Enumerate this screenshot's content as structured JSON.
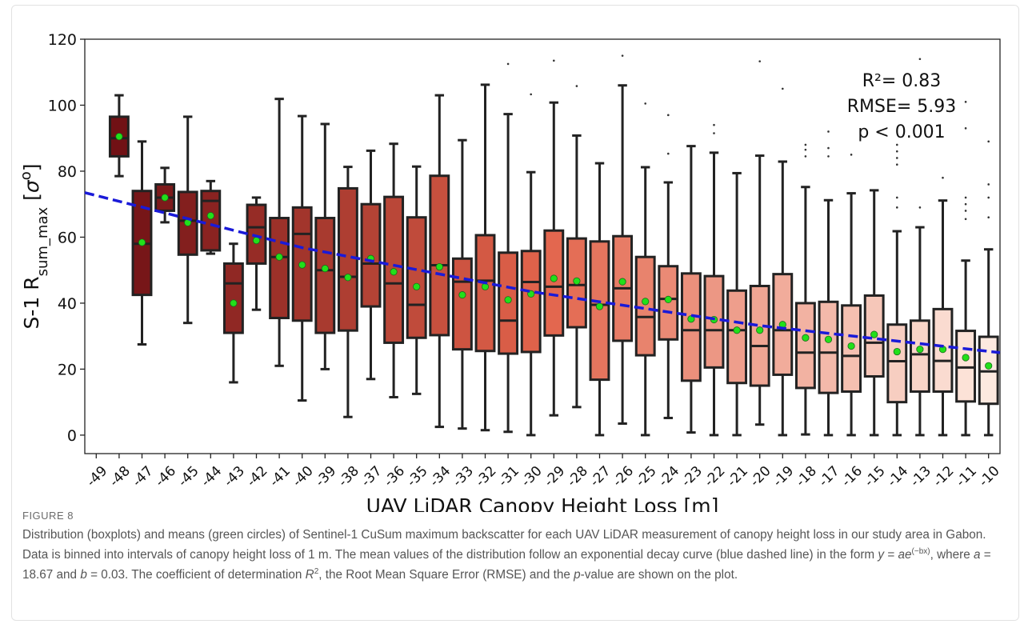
{
  "chart_data": {
    "type": "boxplot",
    "categories": [
      -49,
      -48,
      -47,
      -46,
      -45,
      -44,
      -43,
      -42,
      -41,
      -40,
      -39,
      -38,
      -37,
      -36,
      -35,
      -34,
      -33,
      -32,
      -31,
      -30,
      -29,
      -28,
      -27,
      -26,
      -25,
      -24,
      -23,
      -22,
      -21,
      -20,
      -19,
      -18,
      -17,
      -16,
      -15,
      -14,
      -13,
      -12,
      -11,
      -10
    ],
    "whislo": [
      null,
      78.5,
      27.5,
      64.5,
      34,
      55,
      16,
      38,
      21,
      10.5,
      20,
      5.5,
      17,
      11.5,
      12.5,
      2.5,
      2,
      1.5,
      1,
      0,
      6,
      8.5,
      0,
      3.5,
      0,
      5.2,
      0.8,
      0,
      0,
      3.2,
      0,
      0.2,
      0,
      0,
      0,
      0,
      0,
      0,
      0,
      0
    ],
    "q1": [
      null,
      84.5,
      42.5,
      68,
      54.7,
      56,
      31,
      52,
      35.5,
      34.7,
      31,
      31.7,
      39,
      28,
      29.5,
      30.3,
      26,
      25.5,
      24.7,
      25.2,
      30.2,
      32.7,
      16.8,
      28.6,
      24.2,
      29,
      16.5,
      20.5,
      15.8,
      15,
      18.3,
      14.3,
      12.8,
      13.2,
      17.8,
      10,
      13.2,
      13.2,
      10.2,
      9.5
    ],
    "med": [
      null,
      90,
      58,
      72,
      65,
      71,
      46,
      63,
      54,
      61,
      50,
      48,
      52,
      46,
      39.5,
      51.5,
      46.5,
      46.8,
      34.7,
      46.4,
      45,
      45.5,
      39.5,
      44.5,
      35.8,
      41.3,
      31.8,
      31.8,
      31.8,
      27,
      31.8,
      25,
      25,
      24,
      28,
      22.4,
      24.5,
      22.5,
      20.5,
      19.3
    ],
    "q3": [
      null,
      96.5,
      74,
      76,
      73.7,
      74,
      52,
      69.8,
      65.8,
      69,
      65.8,
      74.8,
      70,
      72.2,
      66,
      78.6,
      53.5,
      60.6,
      55.3,
      55.8,
      62,
      59.6,
      58.7,
      60.3,
      54,
      51.2,
      49,
      48.2,
      43.8,
      45.2,
      48.8,
      40,
      40.4,
      39.3,
      42.3,
      33.5,
      34.7,
      38.2,
      31.6,
      29.8
    ],
    "whishi": [
      null,
      103,
      89,
      81,
      96.5,
      77,
      58,
      72,
      101.9,
      96.7,
      94.3,
      81.3,
      86.2,
      88.3,
      81.4,
      103,
      89.4,
      106.2,
      97.3,
      79.7,
      100.8,
      90.8,
      82.4,
      106,
      81.2,
      76.6,
      87.6,
      85.6,
      79.4,
      84.7,
      82.9,
      75.2,
      71.2,
      73.3,
      74.2,
      61.8,
      63,
      71.1,
      52.9,
      56.3
    ],
    "mean": [
      null,
      90.5,
      58.4,
      72,
      64.4,
      66.5,
      40,
      59,
      54,
      51.6,
      50.5,
      47.8,
      53.5,
      49.5,
      45,
      51,
      42.5,
      45,
      41,
      42.8,
      47.5,
      46.7,
      39,
      46.5,
      40.5,
      41.1,
      35.2,
      35,
      31.8,
      31.8,
      33.5,
      29.5,
      29,
      27,
      30.5,
      25.3,
      26,
      26,
      23.5,
      21
    ],
    "fliers": [
      [],
      [],
      [],
      [],
      [],
      [],
      [],
      [],
      [],
      [],
      [],
      [],
      [],
      [],
      [],
      [],
      [],
      [],
      [
        112.5
      ],
      [
        103.3
      ],
      [
        113.5
      ],
      [
        105.8
      ],
      [],
      [
        115
      ],
      [
        100.5
      ],
      [
        97,
        85.3
      ],
      [],
      [
        94,
        91.5
      ],
      [],
      [
        113.3
      ],
      [
        105
      ],
      [
        88,
        86.5,
        84.5
      ],
      [
        92,
        87,
        84.5
      ],
      [
        85
      ],
      [],
      [
        88,
        86,
        84,
        82,
        72,
        69
      ],
      [
        114,
        69
      ],
      [
        78
      ],
      [
        101,
        93,
        72,
        70,
        68,
        65.5
      ],
      [
        89,
        76,
        72,
        66
      ]
    ],
    "colors": [
      "#6b0d12",
      "#e2644b",
      "#fde9df"
    ],
    "mean_color": "#22e01a",
    "fit_x": [
      -49.5,
      -40,
      -30,
      -20,
      -9.5
    ],
    "fit_y": [
      73.5,
      56.8,
      43.5,
      33.2,
      25
    ],
    "fit_color": "#1a1ad8",
    "ylim": [
      -5.6,
      120
    ],
    "yticks": [
      0,
      20,
      40,
      60,
      80,
      100,
      120
    ],
    "grid": false,
    "xlabel": "UAV LiDAR Canopy Height Loss [m]",
    "ylabel": [
      {
        "text": "S-1 R"
      },
      {
        "text": "sum_max",
        "sub": true
      },
      {
        "text": " ["
      },
      {
        "text": "σ",
        "italic": true
      },
      {
        "text": "o",
        "sup": true
      },
      {
        "text": "]"
      }
    ],
    "annotations": [
      "R²= 0.83",
      "RMSE= 5.93",
      "p < 0.001"
    ]
  },
  "figure": {
    "label": "FIGURE 8",
    "caption": [
      {
        "text": "Distribution (boxplots) and means (green circles) of Sentinel-1 CuSum maximum backscatter for each UAV LiDAR measurement of canopy height loss in our study area in Gabon. Data is binned into intervals of canopy height loss of 1 m. The mean values of the distribution follow an exponential decay curve (blue dashed line) in the form "
      },
      {
        "text": "y",
        "italic": true
      },
      {
        "text": " = "
      },
      {
        "text": "ae",
        "italic": true
      },
      {
        "text": "(−bx)",
        "sup": true
      },
      {
        "text": ", where "
      },
      {
        "text": "a",
        "italic": true
      },
      {
        "text": " = 18.67 and "
      },
      {
        "text": "b",
        "italic": true
      },
      {
        "text": " = 0.03. The coefficient of determination "
      },
      {
        "text": "R",
        "italic": true
      },
      {
        "text": "2",
        "sup": true
      },
      {
        "text": ", the Root Mean Square Error (RMSE) and the "
      },
      {
        "text": "p",
        "italic": true
      },
      {
        "text": "-value are shown on the plot."
      }
    ]
  }
}
